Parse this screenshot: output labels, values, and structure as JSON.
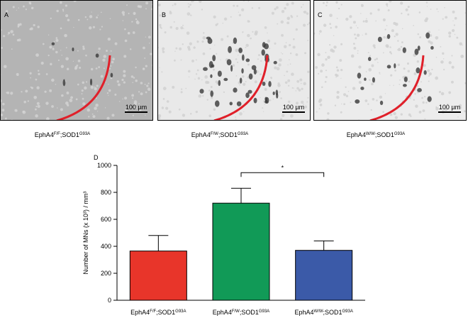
{
  "panels": [
    {
      "label": "A",
      "scale_bar": "100 µm",
      "caption": [
        "EphA4",
        "F/F",
        ";SOD1",
        "G93A"
      ]
    },
    {
      "label": "B",
      "scale_bar": "100 µm",
      "caption": [
        "EphA4",
        "F/W",
        ";SOD1",
        "G93A"
      ]
    },
    {
      "label": "C",
      "scale_bar": "100 µm",
      "caption": [
        "EphA4",
        "W/W",
        ";SOD1",
        "G93A"
      ]
    }
  ],
  "chart_data": {
    "type": "bar",
    "panel_label": "D",
    "y_label": "Number of MNs (x 10³) / mm³",
    "categories": [
      [
        "EphA4",
        "F/F",
        ";SOD1",
        "G93A"
      ],
      [
        "EphA4",
        "F/W",
        ";SOD1",
        "G93A"
      ],
      [
        "EphA4",
        "W/W",
        ";SOD1",
        "G93A"
      ]
    ],
    "values": [
      365,
      720,
      370
    ],
    "errors": [
      115,
      110,
      70
    ],
    "colors": [
      "#e8352a",
      "#119a57",
      "#3b5aa8"
    ],
    "ylim": [
      0,
      1000
    ],
    "yticks": [
      0,
      200,
      400,
      600,
      800,
      1000
    ],
    "significance": {
      "from": 1,
      "to": 2,
      "label": "*"
    }
  }
}
